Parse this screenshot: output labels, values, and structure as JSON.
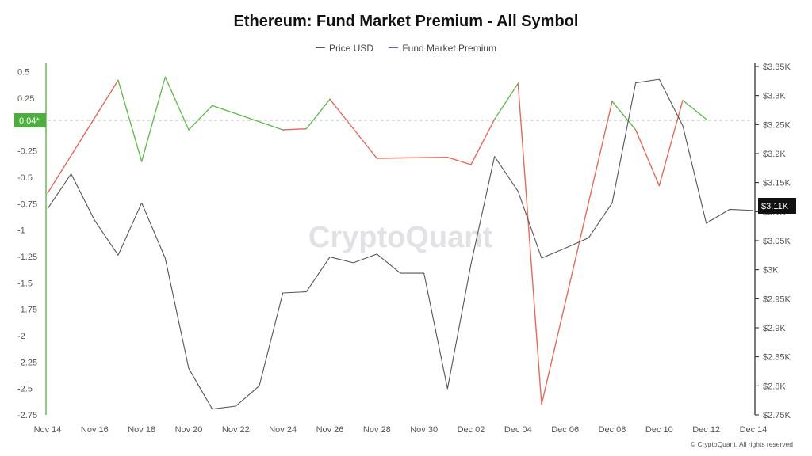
{
  "chart_data": {
    "type": "line",
    "title": "Ethereum: Fund Market Premium - All Symbol",
    "legend": {
      "placement": "top-center",
      "items": [
        {
          "name": "Price USD",
          "color": "#555555"
        },
        {
          "name": "Fund Market Premium",
          "color": "#5b5bd6"
        }
      ]
    },
    "x": [
      "Nov 14",
      "Nov 15",
      "Nov 16",
      "Nov 17",
      "Nov 18",
      "Nov 19",
      "Nov 20",
      "Nov 21",
      "Nov 22",
      "Nov 23",
      "Nov 24",
      "Nov 25",
      "Nov 26",
      "Nov 27",
      "Nov 28",
      "Nov 29",
      "Nov 30",
      "Dec 01",
      "Dec 02",
      "Dec 03",
      "Dec 04",
      "Dec 05",
      "Dec 06",
      "Dec 07",
      "Dec 08",
      "Dec 09",
      "Dec 10",
      "Dec 11",
      "Dec 12",
      "Dec 13",
      "Dec 14"
    ],
    "x_tick_labels": [
      "Nov 14",
      "Nov 16",
      "Nov 18",
      "Nov 20",
      "Nov 22",
      "Nov 24",
      "Nov 26",
      "Nov 28",
      "Nov 30",
      "Dec 02",
      "Dec 04",
      "Dec 06",
      "Dec 08",
      "Dec 10",
      "Dec 12",
      "Dec 14"
    ],
    "series": [
      {
        "name": "Fund Market Premium",
        "axis": "left",
        "positive_color": "#66bb55",
        "negative_color": "#e06b5f",
        "values": [
          -0.65,
          null,
          null,
          0.42,
          -0.35,
          0.45,
          -0.05,
          0.18,
          null,
          null,
          -0.05,
          -0.04,
          0.24,
          null,
          -0.32,
          null,
          null,
          -0.31,
          -0.38,
          0.05,
          0.39,
          -2.65,
          null,
          null,
          0.22,
          -0.05,
          -0.58,
          0.23,
          0.05,
          null,
          null
        ]
      },
      {
        "name": "Price USD",
        "axis": "right",
        "color": "#555555",
        "values": [
          3105,
          3165,
          3085,
          3025,
          3115,
          3020,
          2830,
          2760,
          2765,
          2800,
          2960,
          2962,
          3022,
          3012,
          3027,
          2994,
          2994,
          2795,
          3010,
          3195,
          3135,
          3020,
          3037,
          3055,
          3115,
          3322,
          3328,
          3248,
          3080,
          3104,
          3102
        ]
      }
    ],
    "y_left": {
      "range": [
        -2.75,
        0.55
      ],
      "ticks": [
        0.5,
        0.25,
        0,
        -0.25,
        -0.5,
        -0.75,
        -1,
        -1.25,
        -1.5,
        -1.75,
        -2,
        -2.25,
        -2.5,
        -2.75
      ],
      "tick_labels": [
        "0.5",
        "0.25",
        "",
        "-0.25",
        "-0.5",
        "-0.75",
        "-1",
        "-1.25",
        "-1.5",
        "-1.75",
        "-2",
        "-2.25",
        "-2.5",
        "-2.75"
      ]
    },
    "y_right": {
      "range": [
        2750,
        3350
      ],
      "ticks": [
        3350,
        3300,
        3250,
        3200,
        3150,
        3100,
        3050,
        3000,
        2950,
        2900,
        2850,
        2800,
        2750
      ],
      "tick_labels": [
        "$3.35K",
        "$3.3K",
        "$3.25K",
        "$3.2K",
        "$3.15K",
        "$3.1K",
        "$3.05K",
        "$3K",
        "$2.95K",
        "$2.9K",
        "$2.85K",
        "$2.8K",
        "$2.75K"
      ]
    },
    "current_premium": {
      "value": 0.04,
      "label": "0.04*"
    },
    "current_price": {
      "value": 3110,
      "label": "$3.11K"
    },
    "grid": false
  },
  "watermark": "CryptoQuant",
  "copyright": "© CryptoQuant. All rights reserved"
}
